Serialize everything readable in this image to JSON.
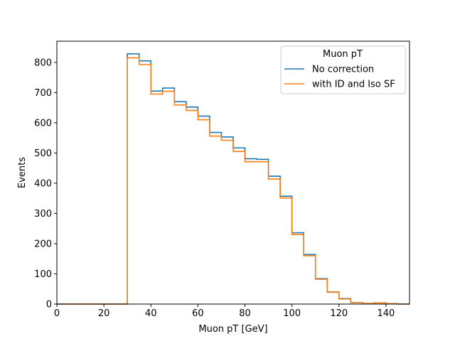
{
  "chart_data": {
    "type": "step-histogram",
    "xlabel": "Muon pT [GeV]",
    "ylabel": "Events",
    "xlim": [
      0,
      150
    ],
    "ylim": [
      0,
      870
    ],
    "xticks": [
      0,
      20,
      40,
      60,
      80,
      100,
      120,
      140
    ],
    "yticks": [
      0,
      100,
      200,
      300,
      400,
      500,
      600,
      700,
      800
    ],
    "grid": false,
    "legend": {
      "title": "Muon pT",
      "position": "upper right"
    },
    "bin_edges": [
      0,
      5,
      10,
      15,
      20,
      25,
      30,
      35,
      40,
      45,
      50,
      55,
      60,
      65,
      70,
      75,
      80,
      85,
      90,
      95,
      100,
      105,
      110,
      115,
      120,
      125,
      130,
      135,
      140,
      145,
      150
    ],
    "series": [
      {
        "name": "No correction",
        "color": "#1f77b4",
        "values": [
          0,
          0,
          0,
          0,
          0,
          0,
          828,
          805,
          705,
          715,
          670,
          652,
          622,
          568,
          553,
          517,
          481,
          479,
          423,
          357,
          236,
          164,
          84,
          40,
          18,
          5,
          2,
          4,
          1,
          0
        ]
      },
      {
        "name": "with ID and Iso SF",
        "color": "#ff7f0e",
        "values": [
          0,
          0,
          0,
          0,
          0,
          0,
          815,
          793,
          695,
          704,
          659,
          641,
          610,
          556,
          542,
          505,
          471,
          471,
          414,
          351,
          230,
          160,
          82,
          39,
          17,
          5,
          2,
          4,
          1,
          0
        ]
      }
    ]
  }
}
